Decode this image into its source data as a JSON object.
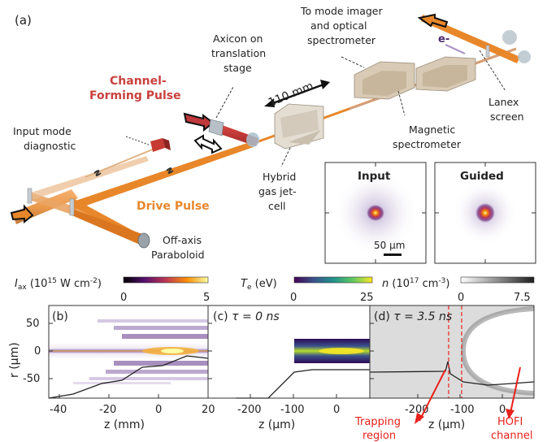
{
  "panel_a": {
    "label": "(a)",
    "to_mode_imager": [
      "To mode imager",
      "and optical",
      "spectrometer"
    ],
    "electron": "e-",
    "axicon": [
      "Axicon on",
      "translation",
      "stage"
    ],
    "channel_forming": [
      "Channel-",
      "Forming Pulse"
    ],
    "distance": "110 mm",
    "lanex": [
      "Lanex",
      "screen"
    ],
    "magnetic": [
      "Magnetic",
      "spectrometer"
    ],
    "input_mode": [
      "Input mode",
      "diagnostic"
    ],
    "hybrid": [
      "Hybrid",
      "gas jet-",
      "cell"
    ],
    "drive_pulse": "Drive Pulse",
    "paraboloid": [
      "Off-axis",
      "Paraboloid"
    ],
    "inset_input": "Input",
    "inset_guided": "Guided",
    "scale_bar": "50 µm"
  },
  "colors": {
    "drive": "#e8872a",
    "channel": "#c0393b",
    "channel_text": "#c9413d",
    "drive_text": "#e8872a",
    "annotation_red": "#e8221c",
    "purple": "#4b2a6a"
  },
  "colorbars": [
    {
      "label_pre": "I",
      "label_sub": "ax",
      "label_post": " (10",
      "label_sup": "15",
      "label_tail": " W cm",
      "label_tail_sup": "-2",
      "label_end": ")",
      "min": "0",
      "max": "5",
      "colormap": "inferno"
    },
    {
      "label_pre": "T",
      "label_sub": "e",
      "label_post": " (eV)",
      "min": "0",
      "max": "25",
      "colormap": "viridis"
    },
    {
      "label_pre": "n",
      "label_post": " (10",
      "label_sup": "17",
      "label_tail": " cm",
      "label_tail_sup": "-3",
      "label_end": ")",
      "min": "0",
      "max": "7.5",
      "colormap": "greys"
    }
  ],
  "panel_b": {
    "label": "(b)",
    "ylabel": "r (µm)",
    "xlabel": "z (mm)",
    "xticks": [
      "-40",
      "-20",
      "0",
      "20"
    ],
    "yticks": [
      "50",
      "0",
      "-50"
    ]
  },
  "panel_c": {
    "label": "(c)",
    "tau_label": "τ = 0 ns",
    "xlabel": "z (µm)",
    "xticks": [
      "-200",
      "-100",
      "0"
    ]
  },
  "panel_d": {
    "label": "(d)",
    "tau_label": "τ = 3.5 ns",
    "xlabel": "z (µm)",
    "xticks": [
      "-200",
      "-100",
      "0"
    ]
  },
  "annotations": {
    "trapping": [
      "Trapping",
      "region"
    ],
    "hofi": [
      "HOFI",
      "channel"
    ]
  }
}
